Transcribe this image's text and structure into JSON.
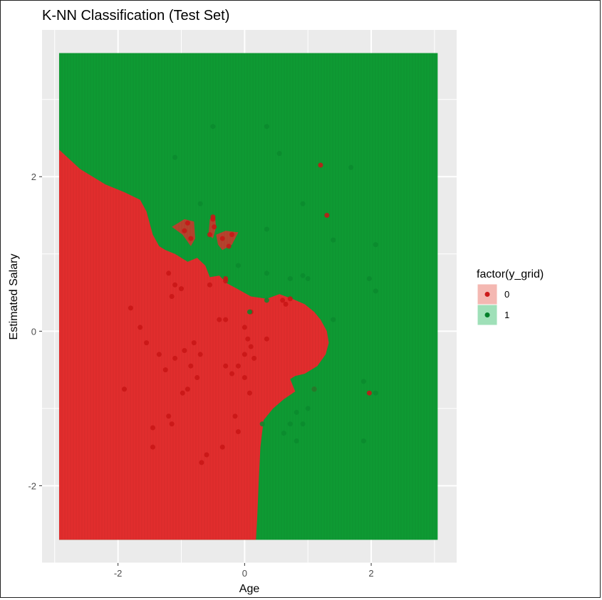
{
  "chart_data": {
    "type": "scatter",
    "title": "K-NN Classification (Test Set)",
    "xlabel": "Age",
    "ylabel": "Estimated Salary",
    "xlim": [
      -3.2,
      3.35
    ],
    "ylim": [
      -3.0,
      3.9
    ],
    "x_ticks": [
      -2,
      0,
      2
    ],
    "y_ticks": [
      -2,
      0,
      2
    ],
    "x_tick_labels": [
      "-2",
      "0",
      "2"
    ],
    "y_tick_labels": [
      "-2",
      "0",
      "2"
    ],
    "grid": true,
    "legend": {
      "title": "factor(y_grid)",
      "position": "right",
      "entries": [
        {
          "label": "0",
          "color": "#cc1a1a",
          "fill": "#f4b8b2"
        },
        {
          "label": "1",
          "color": "#007f2a",
          "fill": "#9fe0b8"
        }
      ]
    },
    "colors": {
      "region_0": "#e12d2d",
      "region_1": "#0e9a33",
      "point_0": "#c81515",
      "point_1": "#0a8a2e",
      "panel_bg": "#ebebeb",
      "grid": "#ffffff"
    },
    "region_extent": {
      "x": [
        -2.93,
        3.05
      ],
      "y": [
        -2.7,
        3.6
      ]
    },
    "region_0_boundary": [
      [
        -2.93,
        2.35
      ],
      [
        -2.6,
        2.1
      ],
      [
        -2.2,
        1.9
      ],
      [
        -1.9,
        1.8
      ],
      [
        -1.65,
        1.7
      ],
      [
        -1.55,
        1.55
      ],
      [
        -1.45,
        1.25
      ],
      [
        -1.35,
        1.1
      ],
      [
        -1.25,
        1.05
      ],
      [
        -1.1,
        1.0
      ],
      [
        -0.9,
        0.9
      ],
      [
        -0.75,
        0.95
      ],
      [
        -0.62,
        0.85
      ],
      [
        -0.55,
        0.7
      ],
      [
        -0.4,
        0.72
      ],
      [
        -0.28,
        0.62
      ],
      [
        -0.12,
        0.55
      ],
      [
        0.1,
        0.45
      ],
      [
        0.35,
        0.42
      ],
      [
        0.55,
        0.48
      ],
      [
        0.75,
        0.42
      ],
      [
        0.95,
        0.35
      ],
      [
        1.1,
        0.25
      ],
      [
        1.2,
        0.15
      ],
      [
        1.3,
        0.0
      ],
      [
        1.33,
        -0.15
      ],
      [
        1.28,
        -0.3
      ],
      [
        1.15,
        -0.45
      ],
      [
        0.95,
        -0.55
      ],
      [
        0.8,
        -0.58
      ],
      [
        0.72,
        -0.62
      ],
      [
        0.8,
        -0.78
      ],
      [
        0.62,
        -0.88
      ],
      [
        0.45,
        -1.0
      ],
      [
        0.3,
        -1.15
      ],
      [
        0.25,
        -1.5
      ],
      [
        0.22,
        -2.0
      ],
      [
        0.2,
        -2.4
      ],
      [
        0.18,
        -2.7
      ],
      [
        -2.93,
        -2.7
      ]
    ],
    "region_0_islands": [
      [
        [
          -0.55,
          1.45
        ],
        [
          -0.47,
          1.5
        ],
        [
          -0.45,
          1.35
        ],
        [
          -0.5,
          1.2
        ],
        [
          -0.57,
          1.25
        ]
      ],
      [
        [
          -0.45,
          1.25
        ],
        [
          -0.3,
          1.3
        ],
        [
          -0.1,
          1.28
        ],
        [
          -0.2,
          1.12
        ],
        [
          -0.35,
          1.05
        ],
        [
          -0.42,
          1.12
        ]
      ],
      [
        [
          -1.15,
          1.35
        ],
        [
          -0.95,
          1.45
        ],
        [
          -0.8,
          1.42
        ],
        [
          -0.78,
          1.2
        ],
        [
          -0.85,
          1.1
        ],
        [
          -0.98,
          1.25
        ]
      ]
    ],
    "points": [
      {
        "x": -1.2,
        "y": 0.75,
        "class": 0
      },
      {
        "x": -1.1,
        "y": 0.6,
        "class": 0
      },
      {
        "x": -1.15,
        "y": 0.45,
        "class": 0
      },
      {
        "x": -1.0,
        "y": 0.55,
        "class": 0
      },
      {
        "x": -1.8,
        "y": 0.3,
        "class": 0
      },
      {
        "x": -1.65,
        "y": 0.05,
        "class": 0
      },
      {
        "x": -1.55,
        "y": -0.15,
        "class": 0
      },
      {
        "x": -1.35,
        "y": -0.3,
        "class": 0
      },
      {
        "x": -1.25,
        "y": -0.5,
        "class": 0
      },
      {
        "x": -1.1,
        "y": -0.35,
        "class": 0
      },
      {
        "x": -0.95,
        "y": -0.25,
        "class": 0
      },
      {
        "x": -0.8,
        "y": -0.15,
        "class": 0
      },
      {
        "x": -0.7,
        "y": -0.3,
        "class": 0
      },
      {
        "x": -0.85,
        "y": -0.45,
        "class": 0
      },
      {
        "x": -0.75,
        "y": -0.6,
        "class": 0
      },
      {
        "x": -0.9,
        "y": -0.75,
        "class": 0
      },
      {
        "x": -0.98,
        "y": -0.8,
        "class": 0
      },
      {
        "x": -1.2,
        "y": -1.1,
        "class": 0
      },
      {
        "x": -1.15,
        "y": -1.2,
        "class": 0
      },
      {
        "x": -1.45,
        "y": -1.25,
        "class": 0
      },
      {
        "x": -1.45,
        "y": -1.5,
        "class": 0
      },
      {
        "x": -1.9,
        "y": -0.75,
        "class": 0
      },
      {
        "x": -0.6,
        "y": -1.6,
        "class": 0
      },
      {
        "x": -0.68,
        "y": -1.7,
        "class": 0
      },
      {
        "x": -0.35,
        "y": -1.5,
        "class": 0
      },
      {
        "x": -0.3,
        "y": -0.45,
        "class": 0
      },
      {
        "x": -0.2,
        "y": -0.55,
        "class": 0
      },
      {
        "x": -0.1,
        "y": -0.45,
        "class": 0
      },
      {
        "x": 0.0,
        "y": -0.3,
        "class": 0
      },
      {
        "x": 0.1,
        "y": -0.2,
        "class": 0
      },
      {
        "x": 0.15,
        "y": -0.35,
        "class": 0
      },
      {
        "x": 0.05,
        "y": -0.1,
        "class": 0
      },
      {
        "x": 0.35,
        "y": -0.1,
        "class": 0
      },
      {
        "x": -0.3,
        "y": 0.15,
        "class": 0
      },
      {
        "x": -0.4,
        "y": 0.15,
        "class": 0
      },
      {
        "x": -0.3,
        "y": 0.65,
        "class": 0
      },
      {
        "x": -0.55,
        "y": 0.6,
        "class": 0
      },
      {
        "x": 0.1,
        "y": 0.25,
        "class": 0
      },
      {
        "x": 0.0,
        "y": 0.05,
        "class": 0
      },
      {
        "x": 0.0,
        "y": -0.6,
        "class": 0
      },
      {
        "x": 0.08,
        "y": -0.8,
        "class": 0
      },
      {
        "x": -0.15,
        "y": -1.1,
        "class": 0
      },
      {
        "x": -0.1,
        "y": -1.3,
        "class": 0
      },
      {
        "x": 0.6,
        "y": 0.4,
        "class": 0
      },
      {
        "x": 0.72,
        "y": 0.42,
        "class": 0
      },
      {
        "x": 0.65,
        "y": 0.35,
        "class": 0
      },
      {
        "x": 1.2,
        "y": 2.15,
        "class": 0
      },
      {
        "x": 1.3,
        "y": 1.5,
        "class": 0
      },
      {
        "x": 1.1,
        "y": -0.75,
        "class": 0
      },
      {
        "x": 1.97,
        "y": -0.8,
        "class": 0
      },
      {
        "x": -0.3,
        "y": 0.68,
        "class": 0
      },
      {
        "x": -0.5,
        "y": 1.45,
        "class": 0
      },
      {
        "x": -0.48,
        "y": 1.35,
        "class": 0
      },
      {
        "x": -0.55,
        "y": 1.25,
        "class": 0
      },
      {
        "x": -0.5,
        "y": 1.48,
        "class": 0
      },
      {
        "x": -0.35,
        "y": 1.2,
        "class": 0
      },
      {
        "x": -0.25,
        "y": 1.1,
        "class": 0
      },
      {
        "x": -0.2,
        "y": 1.25,
        "class": 0
      },
      {
        "x": -0.9,
        "y": 1.4,
        "class": 0
      },
      {
        "x": -0.85,
        "y": 1.2,
        "class": 0
      },
      {
        "x": -0.95,
        "y": 1.3,
        "class": 0
      },
      {
        "x": -1.1,
        "y": 2.25,
        "class": 1
      },
      {
        "x": -0.5,
        "y": 2.65,
        "class": 1
      },
      {
        "x": 0.35,
        "y": 2.65,
        "class": 1
      },
      {
        "x": 0.55,
        "y": 2.3,
        "class": 1
      },
      {
        "x": 1.68,
        "y": 2.12,
        "class": 1
      },
      {
        "x": -0.7,
        "y": 1.65,
        "class": 1
      },
      {
        "x": 0.92,
        "y": 1.65,
        "class": 1
      },
      {
        "x": 0.35,
        "y": 1.32,
        "class": 1
      },
      {
        "x": 1.4,
        "y": 1.18,
        "class": 1
      },
      {
        "x": 2.07,
        "y": 1.12,
        "class": 1
      },
      {
        "x": -0.1,
        "y": 0.85,
        "class": 1
      },
      {
        "x": 0.35,
        "y": 0.75,
        "class": 1
      },
      {
        "x": 0.92,
        "y": 0.72,
        "class": 1
      },
      {
        "x": 0.72,
        "y": 0.68,
        "class": 1
      },
      {
        "x": 1.0,
        "y": 0.68,
        "class": 1
      },
      {
        "x": 1.97,
        "y": 0.68,
        "class": 1
      },
      {
        "x": 2.07,
        "y": 0.52,
        "class": 1
      },
      {
        "x": 0.35,
        "y": 0.4,
        "class": 1
      },
      {
        "x": 0.08,
        "y": 0.25,
        "class": 1
      },
      {
        "x": 1.4,
        "y": 0.15,
        "class": 1
      },
      {
        "x": 1.1,
        "y": -0.75,
        "class": 1
      },
      {
        "x": 1.88,
        "y": -0.65,
        "class": 1
      },
      {
        "x": 2.07,
        "y": -0.8,
        "class": 1
      },
      {
        "x": 0.82,
        "y": -1.05,
        "class": 1
      },
      {
        "x": 1.0,
        "y": -1.0,
        "class": 1
      },
      {
        "x": 0.92,
        "y": -1.2,
        "class": 1
      },
      {
        "x": 0.72,
        "y": -1.2,
        "class": 1
      },
      {
        "x": 0.62,
        "y": -1.32,
        "class": 1
      },
      {
        "x": 0.82,
        "y": -1.42,
        "class": 1
      },
      {
        "x": 1.88,
        "y": -1.42,
        "class": 1
      },
      {
        "x": 0.28,
        "y": -1.2,
        "class": 1
      }
    ]
  }
}
